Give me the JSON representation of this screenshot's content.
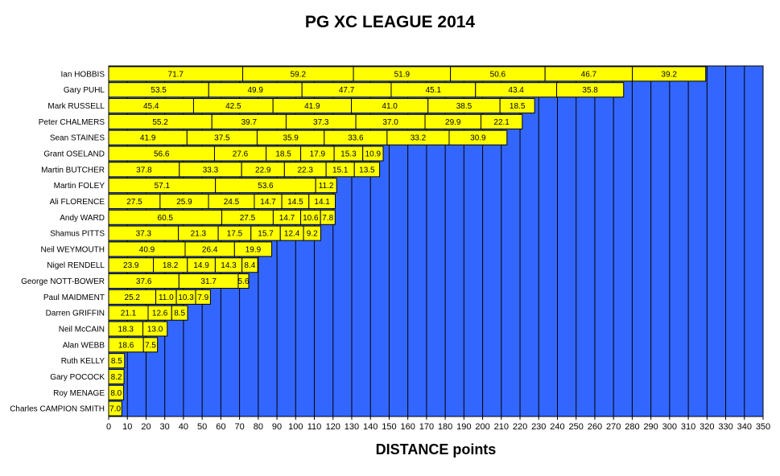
{
  "chart_data": {
    "type": "bar",
    "orientation": "horizontal",
    "stacked": true,
    "title": "PG XC LEAGUE 2014",
    "xlabel": "DISTANCE points",
    "ylabel": "",
    "xlim": [
      0,
      350
    ],
    "x_ticks": [
      0,
      10,
      20,
      30,
      40,
      50,
      60,
      70,
      80,
      90,
      100,
      110,
      120,
      130,
      140,
      150,
      160,
      170,
      180,
      190,
      200,
      210,
      220,
      230,
      240,
      250,
      260,
      270,
      280,
      290,
      300,
      310,
      320,
      330,
      340,
      350
    ],
    "grid": true,
    "legend": "none",
    "colors": {
      "bar_fill": "#ffff00",
      "plot_background": "#3366ff",
      "gridline": "#000000",
      "bar_border": "#000000"
    },
    "categories": [
      "Ian HOBBIS",
      "Gary PUHL",
      "Mark RUSSELL",
      "Peter CHALMERS",
      "Sean STAINES",
      "Grant OSELAND",
      "Martin BUTCHER",
      "Martin FOLEY",
      "Ali FLORENCE",
      "Andy WARD",
      "Shamus PITTS",
      "Neil WEYMOUTH",
      "Nigel RENDELL",
      "George NOTT-BOWER",
      "Paul MAIDMENT",
      "Darren GRIFFIN",
      "Neil McCAIN",
      "Alan WEBB",
      "Ruth KELLY",
      "Gary POCOCK",
      "Roy MENAGE",
      "Charles CAMPION SMITH"
    ],
    "values": [
      [
        "71.7",
        "59.2",
        "51.9",
        "50.6",
        "46.7",
        "39.2"
      ],
      [
        "53.5",
        "49.9",
        "47.7",
        "45.1",
        "43.4",
        "35.8"
      ],
      [
        "45.4",
        "42.5",
        "41.9",
        "41.0",
        "38.5",
        "18.5"
      ],
      [
        "55.2",
        "39.7",
        "37.3",
        "37.0",
        "29.9",
        "22.1"
      ],
      [
        "41.9",
        "37.5",
        "35.9",
        "33.6",
        "33.2",
        "30.9"
      ],
      [
        "56.6",
        "27.6",
        "18.5",
        "17.9",
        "15.3",
        "10.9"
      ],
      [
        "37.8",
        "33.3",
        "22.9",
        "22.3",
        "15.1",
        "13.5"
      ],
      [
        "57.1",
        "53.6",
        "11.2"
      ],
      [
        "27.5",
        "25.9",
        "24.5",
        "14.7",
        "14.5",
        "14.1"
      ],
      [
        "60.5",
        "27.5",
        "14.7",
        "10.6",
        "7.8"
      ],
      [
        "37.3",
        "21.3",
        "17.5",
        "15.7",
        "12.4",
        "9.2"
      ],
      [
        "40.9",
        "26.4",
        "19.9"
      ],
      [
        "23.9",
        "18.2",
        "14.9",
        "14.3",
        "8.4"
      ],
      [
        "37.6",
        "31.7",
        "5.6"
      ],
      [
        "25.2",
        "11.0",
        "10.3",
        "7.9"
      ],
      [
        "21.1",
        "12.6",
        "8.5"
      ],
      [
        "18.3",
        "13.0"
      ],
      [
        "18.6",
        "7.5"
      ],
      [
        "8.5"
      ],
      [
        "8.2"
      ],
      [
        "8.0"
      ],
      [
        "7.0"
      ]
    ]
  }
}
